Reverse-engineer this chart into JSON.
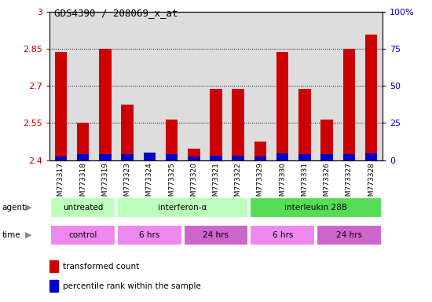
{
  "title": "GDS4390 / 208069_x_at",
  "samples": [
    "GSM773317",
    "GSM773318",
    "GSM773319",
    "GSM773323",
    "GSM773324",
    "GSM773325",
    "GSM773320",
    "GSM773321",
    "GSM773322",
    "GSM773329",
    "GSM773330",
    "GSM773331",
    "GSM773326",
    "GSM773327",
    "GSM773328"
  ],
  "red_values": [
    2.84,
    2.55,
    2.85,
    2.625,
    2.415,
    2.565,
    2.445,
    2.69,
    2.69,
    2.475,
    2.84,
    2.69,
    2.565,
    2.85,
    2.91
  ],
  "blue_values": [
    5,
    8,
    8,
    8,
    10,
    8,
    5,
    6,
    6,
    5,
    9,
    8,
    8,
    8,
    9
  ],
  "ylim_left": [
    2.4,
    3.0
  ],
  "ylim_right": [
    0,
    100
  ],
  "yticks_left": [
    2.4,
    2.55,
    2.7,
    2.85,
    3.0
  ],
  "yticks_right": [
    0,
    25,
    50,
    75,
    100
  ],
  "ytick_labels_left": [
    "2.4",
    "2.55",
    "2.7",
    "2.85",
    "3"
  ],
  "ytick_labels_right": [
    "0",
    "25",
    "50",
    "75",
    "100%"
  ],
  "agent_labels": [
    {
      "text": "untreated",
      "start": 0,
      "end": 3,
      "color": "#bbffbb"
    },
    {
      "text": "interferon-α",
      "start": 3,
      "end": 9,
      "color": "#bbffbb"
    },
    {
      "text": "interleukin 28B",
      "start": 9,
      "end": 15,
      "color": "#55dd55"
    }
  ],
  "time_labels": [
    {
      "text": "control",
      "start": 0,
      "end": 3,
      "color": "#ee88ee"
    },
    {
      "text": "6 hrs",
      "start": 3,
      "end": 6,
      "color": "#ee88ee"
    },
    {
      "text": "24 hrs",
      "start": 6,
      "end": 9,
      "color": "#cc66cc"
    },
    {
      "text": "6 hrs",
      "start": 9,
      "end": 12,
      "color": "#ee88ee"
    },
    {
      "text": "24 hrs",
      "start": 12,
      "end": 15,
      "color": "#cc66cc"
    }
  ],
  "bar_width": 0.55,
  "bar_color_red": "#cc0000",
  "bar_color_blue": "#0000cc",
  "bg_color": "#ffffff",
  "tick_color_left": "#cc0000",
  "tick_color_right": "#0000cc",
  "grid_color": "#000000",
  "bar_bg_color": "#dddddd",
  "grid_lines": [
    2.55,
    2.7,
    2.85
  ]
}
